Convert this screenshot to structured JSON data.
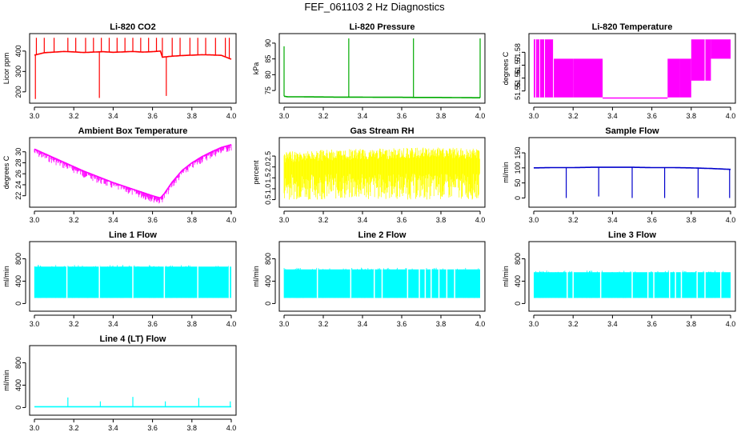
{
  "page_title": "FEF_061103  2 Hz Diagnostics",
  "chart_data": [
    {
      "type": "line",
      "title": "Li-820 CO2",
      "xlabel": "",
      "ylabel": "Licor ppm",
      "color": "#ff0000",
      "xlim": [
        3.0,
        4.0
      ],
      "ylim": [
        160,
        470
      ],
      "xticks": [
        3.0,
        3.2,
        3.4,
        3.6,
        3.8,
        4.0
      ],
      "xtick_labels": [
        "3.0",
        "3.2",
        "3.4",
        "3.6",
        "3.8",
        "4.0"
      ],
      "yticks": [
        200,
        300,
        400
      ],
      "ytick_labels": [
        "200",
        "300",
        "400"
      ],
      "series": [
        {
          "x": [
            3.0,
            3.02,
            3.05,
            3.1,
            3.15,
            3.2,
            3.25,
            3.3,
            3.35,
            3.4,
            3.45,
            3.5,
            3.55,
            3.6,
            3.64,
            3.65,
            3.7,
            3.75,
            3.8,
            3.85,
            3.9,
            3.95,
            4.0
          ],
          "y": [
            380,
            385,
            392,
            395,
            398,
            396,
            393,
            395,
            397,
            394,
            396,
            398,
            395,
            397,
            400,
            370,
            375,
            378,
            380,
            382,
            381,
            379,
            360
          ]
        }
      ],
      "annotations_spikes": {
        "up_x": [
          3.01,
          3.05,
          3.1,
          3.17,
          3.21,
          3.26,
          3.3,
          3.34,
          3.38,
          3.42,
          3.46,
          3.5,
          3.54,
          3.58,
          3.62,
          3.65,
          3.7,
          3.74,
          3.79,
          3.83,
          3.87,
          3.92,
          3.97,
          3.99
        ],
        "up_y": 465,
        "down": [
          {
            "x": 3.005,
            "y": 165
          },
          {
            "x": 3.33,
            "y": 170
          },
          {
            "x": 3.67,
            "y": 180
          }
        ]
      }
    },
    {
      "type": "line",
      "title": "Li-820 Pressure",
      "xlabel": "",
      "ylabel": "kPa",
      "color": "#00aa00",
      "xlim": [
        3.0,
        4.0
      ],
      "ylim": [
        72,
        92
      ],
      "xticks": [
        3.0,
        3.2,
        3.4,
        3.6,
        3.8,
        4.0
      ],
      "xtick_labels": [
        "3.0",
        "3.2",
        "3.4",
        "3.6",
        "3.8",
        "4.0"
      ],
      "yticks": [
        75,
        80,
        85,
        90
      ],
      "ytick_labels": [
        "75",
        "80",
        "85",
        "90"
      ],
      "series": [
        {
          "x": [
            3.0,
            3.02,
            3.1,
            3.2,
            3.3,
            3.4,
            3.5,
            3.6,
            3.7,
            3.8,
            3.9,
            4.0
          ],
          "y": [
            73.2,
            73.0,
            73.0,
            72.95,
            72.9,
            72.9,
            72.85,
            72.85,
            72.8,
            72.8,
            72.75,
            72.7
          ]
        }
      ],
      "annotations_spikes": {
        "up": [
          {
            "x": 3.0,
            "y": 89
          },
          {
            "x": 3.33,
            "y": 91.5
          },
          {
            "x": 3.66,
            "y": 91.5
          },
          {
            "x": 4.0,
            "y": 91.5
          }
        ]
      }
    },
    {
      "type": "area",
      "title": "Li-820 Temperature",
      "xlabel": "",
      "ylabel": "degrees C",
      "color": "#ff00ff",
      "xlim": [
        3.0,
        4.0
      ],
      "ylim": [
        51.543,
        51.592
      ],
      "xticks": [
        3.0,
        3.2,
        3.4,
        3.6,
        3.8,
        4.0
      ],
      "xtick_labels": [
        "3.0",
        "3.2",
        "3.4",
        "3.6",
        "3.8",
        "4.0"
      ],
      "yticks": [
        51.55,
        51.56,
        51.57,
        51.58
      ],
      "ytick_labels": [
        "51.55",
        "51.56",
        "51.57",
        "51.58"
      ],
      "series": [
        {
          "x_start": [
            3.0,
            3.02,
            3.1,
            3.2,
            3.35,
            3.5,
            3.68,
            3.74,
            3.8,
            3.9
          ],
          "x_end": [
            3.02,
            3.1,
            3.2,
            3.35,
            3.5,
            3.68,
            3.74,
            3.8,
            3.9,
            4.0
          ],
          "low": [
            51.545,
            51.545,
            51.545,
            51.545,
            51.545,
            51.545,
            51.545,
            51.545,
            51.558,
            51.575
          ],
          "high": [
            51.59,
            51.59,
            51.575,
            51.575,
            51.545,
            51.545,
            51.575,
            51.575,
            51.59,
            51.59
          ]
        }
      ]
    },
    {
      "type": "line",
      "title": "Ambient Box Temperature",
      "xlabel": "",
      "ylabel": "degrees C",
      "color": "#ff00ff",
      "xlim": [
        3.0,
        4.0
      ],
      "ylim": [
        20.5,
        32
      ],
      "xticks": [
        3.0,
        3.2,
        3.4,
        3.6,
        3.8,
        4.0
      ],
      "xtick_labels": [
        "3.0",
        "3.2",
        "3.4",
        "3.6",
        "3.8",
        "4.0"
      ],
      "yticks": [
        22,
        24,
        26,
        28,
        30
      ],
      "ytick_labels": [
        "22",
        "24",
        "26",
        "28",
        "30"
      ],
      "series": [
        {
          "x": [
            3.0,
            3.05,
            3.1,
            3.15,
            3.2,
            3.25,
            3.3,
            3.35,
            3.4,
            3.45,
            3.5,
            3.55,
            3.6,
            3.64,
            3.66,
            3.7,
            3.75,
            3.8,
            3.85,
            3.9,
            3.95,
            4.0
          ],
          "y": [
            30.5,
            29.7,
            28.9,
            28.1,
            27.3,
            26.5,
            25.8,
            25.1,
            24.4,
            23.8,
            23.2,
            22.6,
            22.0,
            21.6,
            22.4,
            24.5,
            26.6,
            28.0,
            29.1,
            30.0,
            30.8,
            31.3
          ]
        }
      ],
      "noise_band": 1.2
    },
    {
      "type": "line",
      "title": "Gas Stream RH",
      "xlabel": "",
      "ylabel": "percent",
      "color": "#ffff00",
      "xlim": [
        3.0,
        4.0
      ],
      "ylim": [
        0.3,
        3.2
      ],
      "xticks": [
        3.0,
        3.2,
        3.4,
        3.6,
        3.8,
        4.0
      ],
      "xtick_labels": [
        "3.0",
        "3.2",
        "3.4",
        "3.6",
        "3.8",
        "4.0"
      ],
      "yticks": [
        0.5,
        1.0,
        1.5,
        2.0,
        2.5
      ],
      "ytick_labels": [
        "0.5",
        "1.0",
        "1.5",
        "2.0",
        "2.5"
      ],
      "series": [
        {
          "x": [
            3.0,
            3.25,
            3.5,
            3.75,
            4.0
          ],
          "low": [
            0.5,
            0.5,
            0.5,
            0.5,
            0.5
          ],
          "high": [
            2.7,
            2.8,
            2.85,
            2.9,
            2.85
          ]
        }
      ]
    },
    {
      "type": "line",
      "title": "Sample Flow",
      "xlabel": "",
      "ylabel": "ml/min",
      "color": "#0000cc",
      "xlim": [
        3.0,
        4.0
      ],
      "ylim": [
        -20,
        190
      ],
      "xticks": [
        3.0,
        3.2,
        3.4,
        3.6,
        3.8,
        4.0
      ],
      "xtick_labels": [
        "3.0",
        "3.2",
        "3.4",
        "3.6",
        "3.8",
        "4.0"
      ],
      "yticks": [
        0,
        50,
        100,
        150
      ],
      "ytick_labels": [
        "0",
        "50",
        "100",
        "150"
      ],
      "series": [
        {
          "x": [
            3.0,
            3.1,
            3.2,
            3.3,
            3.4,
            3.5,
            3.6,
            3.7,
            3.8,
            3.9,
            4.0
          ],
          "y": [
            100,
            101,
            101,
            102,
            102,
            102,
            101,
            101,
            100,
            98,
            95
          ]
        }
      ],
      "annotations_spikes": {
        "down": [
          {
            "x": 3.165,
            "y": 0
          },
          {
            "x": 3.33,
            "y": 5
          },
          {
            "x": 3.5,
            "y": 0
          },
          {
            "x": 3.665,
            "y": 0
          },
          {
            "x": 3.835,
            "y": 0
          },
          {
            "x": 3.995,
            "y": 0
          }
        ]
      }
    },
    {
      "type": "area",
      "title": "Line 1 Flow",
      "xlabel": "",
      "ylabel": "ml/min",
      "color": "#00ffff",
      "xlim": [
        3.0,
        4.0
      ],
      "ylim": [
        -80,
        1050
      ],
      "xticks": [
        3.0,
        3.2,
        3.4,
        3.6,
        3.8,
        4.0
      ],
      "xtick_labels": [
        "3.0",
        "3.2",
        "3.4",
        "3.6",
        "3.8",
        "4.0"
      ],
      "yticks": [
        0,
        400,
        800
      ],
      "ytick_labels": [
        "0",
        "400",
        "800"
      ],
      "series": [
        {
          "x": [
            3.0,
            4.0
          ],
          "low": [
            100,
            100
          ],
          "high": [
            660,
            640
          ],
          "gaps": [
            3.165,
            3.33,
            3.5,
            3.66,
            3.83,
            3.99
          ]
        }
      ]
    },
    {
      "type": "area",
      "title": "Line 2 Flow",
      "xlabel": "",
      "ylabel": "ml/min",
      "color": "#00ffff",
      "xlim": [
        3.0,
        4.0
      ],
      "ylim": [
        -80,
        1050
      ],
      "xticks": [
        3.0,
        3.2,
        3.4,
        3.6,
        3.8,
        4.0
      ],
      "xtick_labels": [
        "3.0",
        "3.2",
        "3.4",
        "3.6",
        "3.8",
        "4.0"
      ],
      "yticks": [
        0,
        400,
        800
      ],
      "ytick_labels": [
        "0",
        "400",
        "800"
      ],
      "series": [
        {
          "x": [
            3.0,
            4.0
          ],
          "low": [
            100,
            100
          ],
          "high": [
            610,
            620
          ],
          "gaps": [
            3.17,
            3.34,
            3.46,
            3.5,
            3.63,
            3.69,
            3.72,
            3.75,
            3.79,
            3.83,
            3.87
          ]
        }
      ]
    },
    {
      "type": "area",
      "title": "Line 3 Flow",
      "xlabel": "",
      "ylabel": "ml/min",
      "color": "#00ffff",
      "xlim": [
        3.0,
        4.0
      ],
      "ylim": [
        -80,
        1050
      ],
      "xticks": [
        3.0,
        3.2,
        3.4,
        3.6,
        3.8,
        4.0
      ],
      "xtick_labels": [
        "3.0",
        "3.2",
        "3.4",
        "3.6",
        "3.8",
        "4.0"
      ],
      "yticks": [
        0,
        400,
        800
      ],
      "ytick_labels": [
        "0",
        "400",
        "800"
      ],
      "series": [
        {
          "x": [
            3.0,
            4.0
          ],
          "low": [
            100,
            100
          ],
          "high": [
            560,
            540
          ],
          "gaps": [
            3.17,
            3.2,
            3.34,
            3.5,
            3.58,
            3.61,
            3.69,
            3.72,
            3.75,
            3.83,
            3.87,
            3.95
          ]
        }
      ]
    },
    {
      "type": "line",
      "title": "Line 4 (LT) Flow",
      "xlabel": "",
      "ylabel": "ml/min",
      "color": "#00ffff",
      "xlim": [
        3.0,
        4.0
      ],
      "ylim": [
        -80,
        1050
      ],
      "xticks": [
        3.0,
        3.2,
        3.4,
        3.6,
        3.8,
        4.0
      ],
      "xtick_labels": [
        "3.0",
        "3.2",
        "3.4",
        "3.6",
        "3.8",
        "4.0"
      ],
      "yticks": [
        0,
        400,
        800
      ],
      "ytick_labels": [
        "0",
        "400",
        "800"
      ],
      "series": [
        {
          "x": [
            3.0,
            4.0
          ],
          "y": [
            15,
            15
          ]
        }
      ],
      "annotations_spikes": {
        "up": [
          {
            "x": 3.17,
            "y": 180
          },
          {
            "x": 3.335,
            "y": 110
          },
          {
            "x": 3.5,
            "y": 190
          },
          {
            "x": 3.665,
            "y": 110
          },
          {
            "x": 3.835,
            "y": 170
          },
          {
            "x": 3.995,
            "y": 110
          }
        ]
      }
    }
  ]
}
